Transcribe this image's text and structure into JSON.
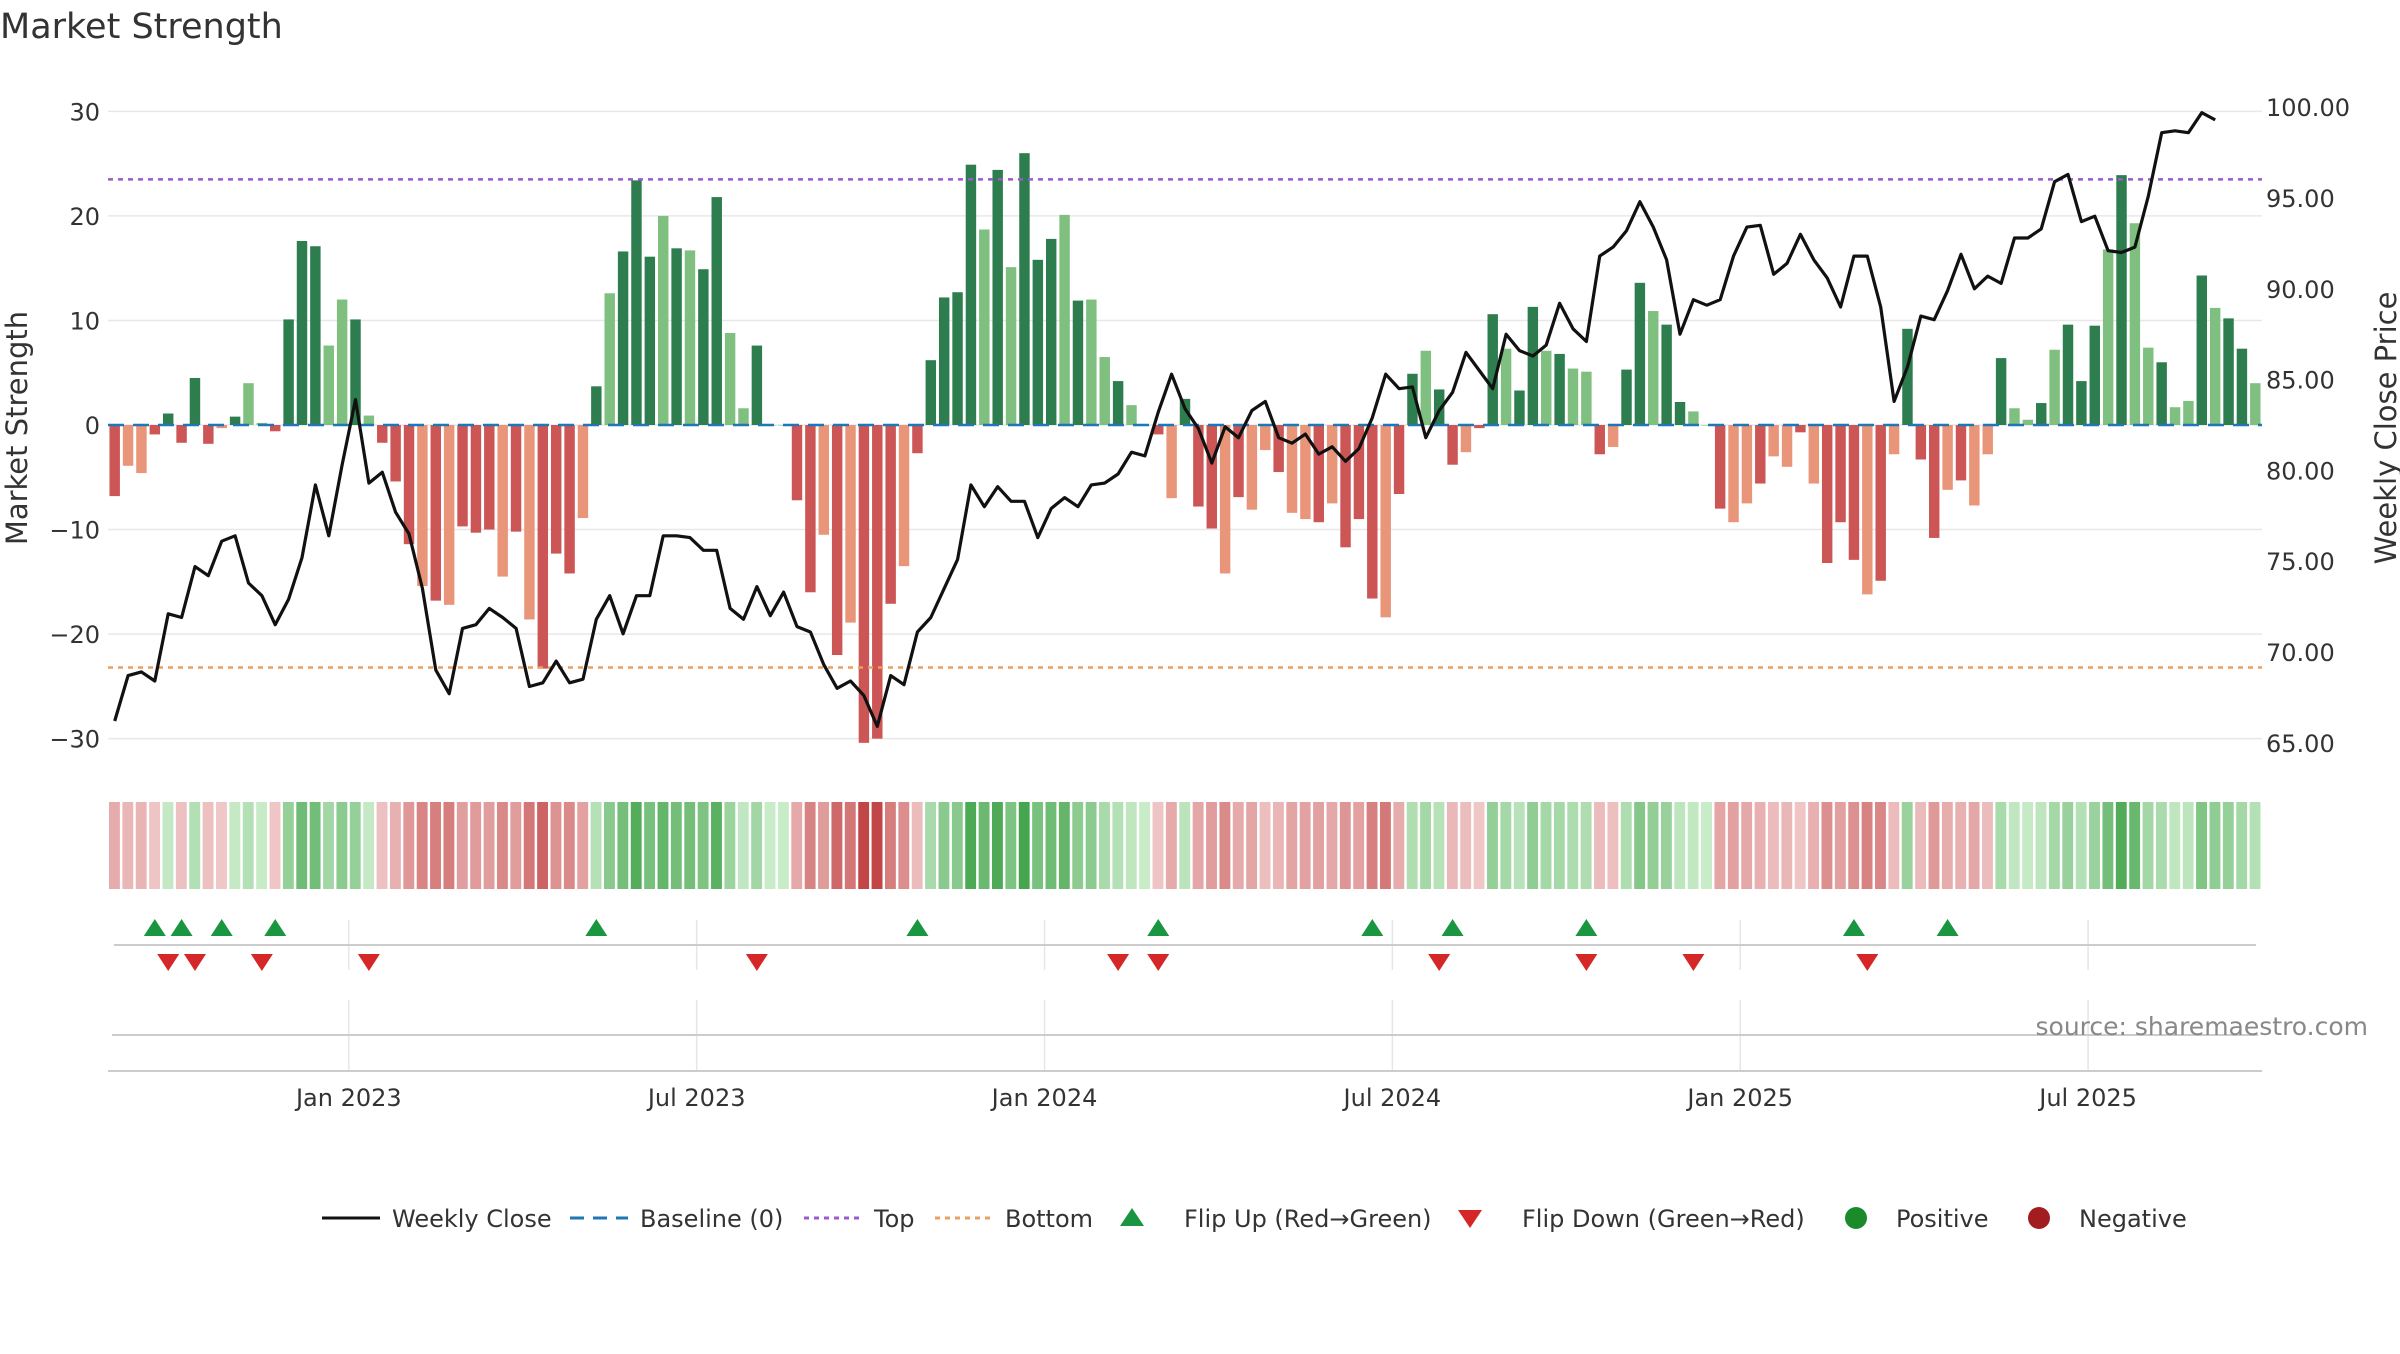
{
  "chart_data": {
    "type": "bar",
    "title": "Market Strength",
    "ylabel": "Market Strength",
    "y2label": "Weekly Close Price",
    "source": "source: sharemaestro.com",
    "ylim": [
      -33,
      33
    ],
    "y2lim": [
      63.5,
      101.5
    ],
    "yticks": [
      "30",
      "20",
      "10",
      "0",
      "−10",
      "−20",
      "−30"
    ],
    "ytick_values": [
      30,
      20,
      10,
      0,
      -10,
      -20,
      -30
    ],
    "y2ticks": [
      "100.00",
      "95.00",
      "90.00",
      "85.00",
      "80.00",
      "75.00",
      "70.00",
      "65.00"
    ],
    "y2tick_values": [
      100,
      95,
      90,
      85,
      80,
      75,
      70,
      65
    ],
    "xticks": [
      "Jan 2023",
      "Jul 2023",
      "Jan 2024",
      "Jul 2024",
      "Jan 2025",
      "Jul 2025"
    ],
    "xtick_weeks": [
      18,
      44,
      70,
      96,
      122,
      148
    ],
    "top_line": 23.5,
    "bottom_line": -23.2,
    "strength": [
      -6.8,
      -3.9,
      -4.6,
      -0.9,
      1.1,
      -1.7,
      4.5,
      -1.8,
      -0.3,
      0.8,
      4.0,
      0.2,
      -0.6,
      10.1,
      17.6,
      17.1,
      7.6,
      12.0,
      10.1,
      0.9,
      -1.7,
      -5.4,
      -11.4,
      -15.4,
      -16.8,
      -17.2,
      -9.7,
      -10.3,
      -10.0,
      -14.5,
      -10.2,
      -18.6,
      -23.3,
      -12.3,
      -14.2,
      -8.9,
      3.7,
      12.6,
      16.6,
      23.4,
      16.1,
      20.0,
      16.9,
      16.7,
      14.9,
      21.8,
      8.8,
      1.6,
      7.6,
      0.0,
      0.0,
      -7.2,
      -16.0,
      -10.5,
      -22.0,
      -18.9,
      -30.4,
      -30.0,
      -17.1,
      -13.5,
      -2.7,
      6.2,
      12.2,
      12.7,
      24.9,
      18.7,
      24.4,
      15.1,
      26.0,
      15.8,
      17.8,
      20.1,
      11.9,
      12.0,
      6.5,
      4.2,
      1.9,
      0.0,
      -0.9,
      -7.0,
      2.5,
      -7.8,
      -9.9,
      -14.2,
      -6.9,
      -8.1,
      -2.4,
      -4.5,
      -8.4,
      -9.0,
      -9.3,
      -7.5,
      -11.7,
      -9.0,
      -16.6,
      -18.4,
      -6.6,
      4.9,
      7.1,
      3.4,
      -3.8,
      -2.6,
      -0.3,
      10.6,
      7.3,
      3.3,
      11.3,
      7.1,
      6.8,
      5.4,
      5.1,
      -2.8,
      -2.1,
      5.3,
      13.6,
      10.9,
      9.6,
      2.2,
      1.3,
      0.0,
      -8.0,
      -9.3,
      -7.5,
      -5.6,
      -3.0,
      -4.0,
      -0.7,
      -5.6,
      -13.2,
      -9.3,
      -12.9,
      -16.2,
      -14.9,
      -2.8,
      9.2,
      -3.3,
      -10.8,
      -6.2,
      -5.3,
      -7.7,
      -2.8,
      6.4,
      1.6,
      0.5,
      2.1,
      7.2,
      9.6,
      4.2,
      9.5,
      16.8,
      23.9,
      19.3,
      7.4,
      6.0,
      1.7,
      2.3,
      14.3,
      11.2,
      10.2,
      7.3,
      4.0
    ],
    "close": [
      66.2,
      68.7,
      68.9,
      68.4,
      72.1,
      71.9,
      74.7,
      74.2,
      76.1,
      76.4,
      73.8,
      73.1,
      71.5,
      72.9,
      75.2,
      79.2,
      76.4,
      80.3,
      83.9,
      79.3,
      79.9,
      77.7,
      76.5,
      73.5,
      69.0,
      67.7,
      71.3,
      71.5,
      72.4,
      71.9,
      71.3,
      68.1,
      68.3,
      69.5,
      68.3,
      68.5,
      71.8,
      73.1,
      71.0,
      73.1,
      73.1,
      76.4,
      76.4,
      76.3,
      75.6,
      75.6,
      72.4,
      71.8,
      73.6,
      72.0,
      73.3,
      71.4,
      71.1,
      69.3,
      68.0,
      68.4,
      67.6,
      65.9,
      68.7,
      68.2,
      71.1,
      71.9,
      73.5,
      75.1,
      79.2,
      78.0,
      79.1,
      78.3,
      78.3,
      76.3,
      77.9,
      78.5,
      78.0,
      79.2,
      79.3,
      79.8,
      81.0,
      80.8,
      83.2,
      85.3,
      83.4,
      82.3,
      80.4,
      82.4,
      81.8,
      83.3,
      83.8,
      81.8,
      81.5,
      82.0,
      80.9,
      81.3,
      80.5,
      81.2,
      82.9,
      85.3,
      84.5,
      84.6,
      81.8,
      83.3,
      84.3,
      86.5,
      85.5,
      84.5,
      87.5,
      86.6,
      86.3,
      86.9,
      89.2,
      87.8,
      87.1,
      91.8,
      92.3,
      93.2,
      94.8,
      93.4,
      91.6,
      87.5,
      89.4,
      89.1,
      89.4,
      91.8,
      93.4,
      93.5,
      90.8,
      91.4,
      93.0,
      91.6,
      90.6,
      89.0,
      91.8,
      91.8,
      89.0,
      83.8,
      85.7,
      88.5,
      88.3,
      89.9,
      91.9,
      90.0,
      90.7,
      90.3,
      92.8,
      92.8,
      93.3,
      95.9,
      96.3,
      93.7,
      94.0,
      92.1,
      92.0,
      92.3,
      95.1,
      98.6,
      98.7,
      98.6,
      99.7,
      99.3
    ],
    "flip_up": [
      3,
      5,
      8,
      12,
      36,
      60,
      78,
      94,
      100,
      110,
      130,
      137
    ],
    "flip_down": [
      4,
      6,
      11,
      19,
      48,
      75,
      78,
      99,
      110,
      118,
      131
    ],
    "legend": [
      "Weekly Close",
      "Baseline (0)",
      "Top",
      "Bottom",
      "Flip Up (Red→Green)",
      "Flip Down (Green→Red)",
      "Positive",
      "Negative"
    ],
    "colors": {
      "pos_strong": "#2e7d4f",
      "pos_weak": "#7fbf7f",
      "neg_strong": "#cc5555",
      "neg_weak": "#e8957a",
      "close_line": "#111111",
      "baseline": "#1f77b4",
      "top": "#9b59d0",
      "bottom": "#e8a060",
      "flip_up": "#1a9641",
      "flip_down": "#d62728",
      "positive": "#1a8a2a",
      "negative": "#a21d20"
    }
  }
}
